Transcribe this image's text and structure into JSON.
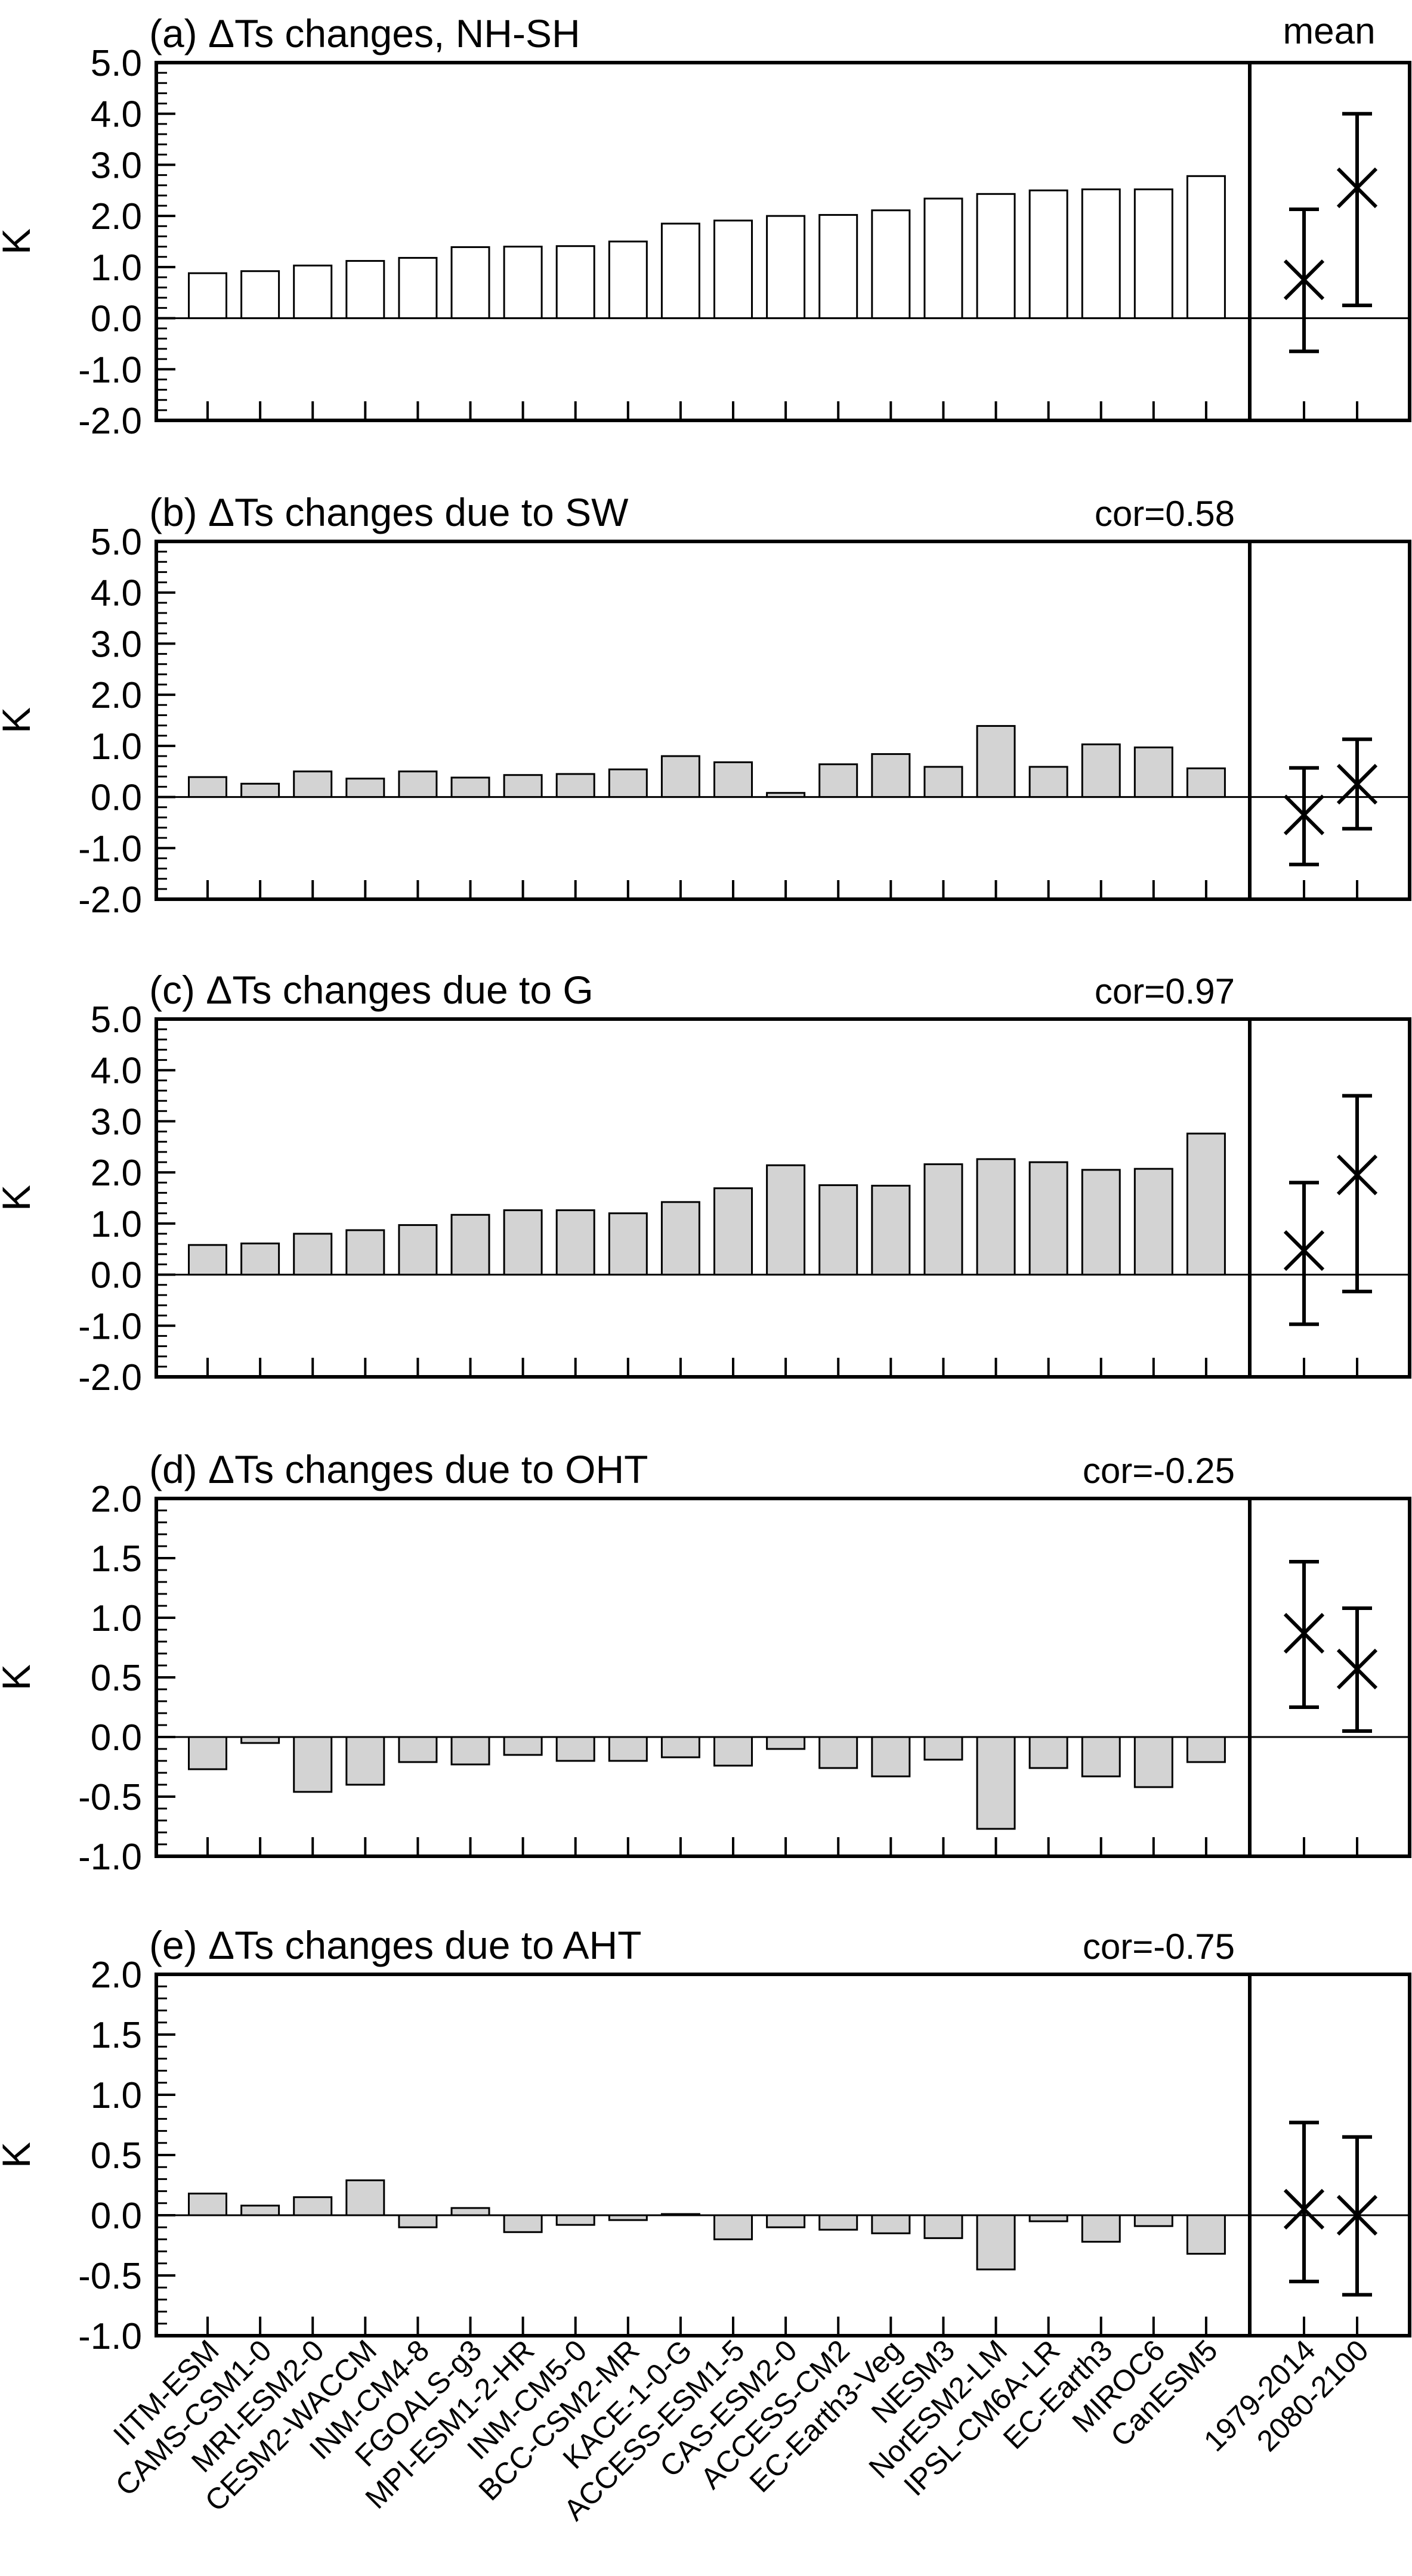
{
  "models": [
    "IITM-ESM",
    "CAMS-CSM1-0",
    "MRI-ESM2-0",
    "CESM2-WACCM",
    "INM-CM4-8",
    "FGOALS-g3",
    "MPI-ESM1-2-HR",
    "INM-CM5-0",
    "BCC-CSM2-MR",
    "KACE-1-0-G",
    "ACCESS-ESM1-5",
    "CAS-ESM2-0",
    "ACCESS-CM2",
    "EC-Earth3-Veg",
    "NESM3",
    "NorESM2-LM",
    "IPSL-CM6A-LR",
    "EC-Earth3",
    "MIROC6",
    "CanESM5"
  ],
  "periods": [
    "1979-2014",
    "2080-2100"
  ],
  "mean_label": "mean",
  "ylabel": "K",
  "colors": {
    "bar_a": "#ffffff",
    "bar_other": "#d3d3d3",
    "stroke": "#000000"
  },
  "chart_data": [
    {
      "type": "bar",
      "title": "(a) ΔTs changes, NH-SH",
      "cor": "",
      "ylim": [
        -2.0,
        5.0
      ],
      "ticks": [
        "-2.0",
        "-1.0",
        "0.0",
        "1.0",
        "2.0",
        "3.0",
        "4.0",
        "5.0"
      ],
      "values": [
        0.88,
        0.92,
        1.03,
        1.12,
        1.18,
        1.39,
        1.4,
        1.41,
        1.5,
        1.85,
        1.91,
        2.0,
        2.02,
        2.11,
        2.34,
        2.43,
        2.5,
        2.52,
        2.52,
        2.78
      ],
      "means": [
        {
          "mean": 0.75,
          "low": -0.65,
          "high": 2.13
        },
        {
          "mean": 2.55,
          "low": 0.25,
          "high": 4.0
        }
      ]
    },
    {
      "type": "bar",
      "title": "(b) ΔTs changes due to SW",
      "cor": "cor=0.58",
      "ylim": [
        -2.0,
        5.0
      ],
      "ticks": [
        "-2.0",
        "-1.0",
        "0.0",
        "1.0",
        "2.0",
        "3.0",
        "4.0",
        "5.0"
      ],
      "values": [
        0.39,
        0.26,
        0.5,
        0.36,
        0.5,
        0.38,
        0.43,
        0.45,
        0.54,
        0.8,
        0.68,
        0.08,
        0.64,
        0.84,
        0.59,
        1.39,
        0.59,
        1.03,
        0.97,
        0.56
      ],
      "means": [
        {
          "mean": -0.35,
          "low": -1.32,
          "high": 0.57
        },
        {
          "mean": 0.25,
          "low": -0.62,
          "high": 1.13
        }
      ]
    },
    {
      "type": "bar",
      "title": "(c) ΔTs changes due to G",
      "cor": "cor=0.97",
      "ylim": [
        -2.0,
        5.0
      ],
      "ticks": [
        "-2.0",
        "-1.0",
        "0.0",
        "1.0",
        "2.0",
        "3.0",
        "4.0",
        "5.0"
      ],
      "values": [
        0.58,
        0.61,
        0.8,
        0.87,
        0.97,
        1.17,
        1.26,
        1.26,
        1.2,
        1.42,
        1.69,
        2.14,
        1.75,
        1.74,
        2.16,
        2.26,
        2.2,
        2.05,
        2.07,
        2.76
      ],
      "means": [
        {
          "mean": 0.47,
          "low": -0.97,
          "high": 1.8
        },
        {
          "mean": 1.95,
          "low": -0.33,
          "high": 3.5
        }
      ]
    },
    {
      "type": "bar",
      "title": "(d) ΔTs changes due to OHT",
      "cor": "cor=-0.25",
      "ylim": [
        -1.0,
        2.0
      ],
      "ticks": [
        "-1.0",
        "-0.5",
        "0.0",
        "0.5",
        "1.0",
        "1.5",
        "2.0"
      ],
      "values": [
        -0.27,
        -0.05,
        -0.46,
        -0.4,
        -0.21,
        -0.23,
        -0.15,
        -0.2,
        -0.2,
        -0.17,
        -0.24,
        -0.1,
        -0.26,
        -0.33,
        -0.19,
        -0.77,
        -0.26,
        -0.33,
        -0.42,
        -0.21
      ],
      "means": [
        {
          "mean": 0.87,
          "low": 0.25,
          "high": 1.47
        },
        {
          "mean": 0.57,
          "low": 0.05,
          "high": 1.08
        }
      ]
    },
    {
      "type": "bar",
      "title": "(e) ΔTs changes due to AHT",
      "cor": "cor=-0.75",
      "ylim": [
        -1.0,
        2.0
      ],
      "ticks": [
        "-1.0",
        "-0.5",
        "0.0",
        "0.5",
        "1.0",
        "1.5",
        "2.0"
      ],
      "values": [
        0.18,
        0.08,
        0.15,
        0.29,
        -0.1,
        0.06,
        -0.14,
        -0.08,
        -0.04,
        0.01,
        -0.2,
        -0.1,
        -0.12,
        -0.15,
        -0.19,
        -0.45,
        -0.05,
        -0.22,
        -0.09,
        -0.32
      ],
      "means": [
        {
          "mean": 0.05,
          "low": -0.55,
          "high": 0.77
        },
        {
          "mean": 0.0,
          "low": -0.66,
          "high": 0.65
        }
      ]
    }
  ]
}
